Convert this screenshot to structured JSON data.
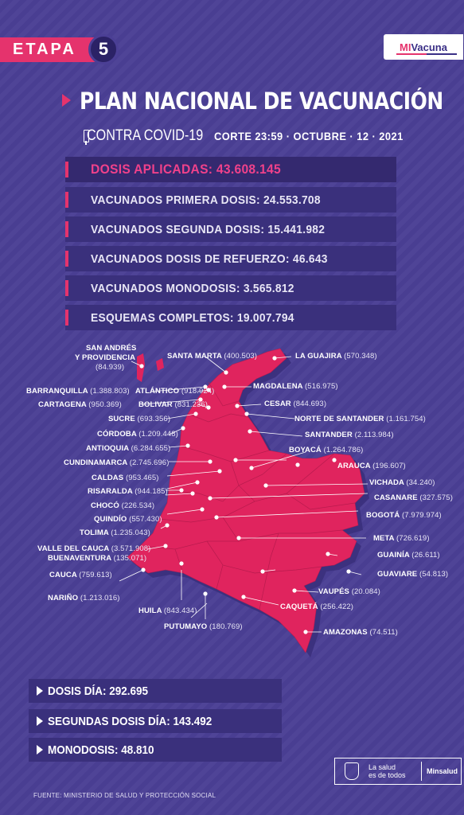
{
  "header": {
    "etapa_label": "ETAPA",
    "etapa_number": "5",
    "logo_mi": "MI",
    "logo_vacuna": "Vacuna",
    "title": "PLAN NACIONAL DE VACUNACIÓN",
    "subtitle": "CONTRA COVID-19",
    "corte": "CORTE 23:59 · OCTUBRE · 12 · 2021"
  },
  "stats": [
    "DOSIS APLICADAS: 43.608.145",
    "VACUNADOS PRIMERA DOSIS: 24.553.708",
    "VACUNADOS SEGUNDA DOSIS: 15.441.982",
    "VACUNADOS  DOSIS DE REFUERZO: 46.643",
    "VACUNADOS MONODOSIS: 3.565.812",
    "ESQUEMAS COMPLETOS: 19.007.794"
  ],
  "map_labels": [
    {
      "name": "SAN ANDRÉS",
      "value": ""
    },
    {
      "name": "Y PROVIDENCIA",
      "value": ""
    },
    {
      "name": "",
      "value": "(84.939)"
    },
    {
      "name": "SANTA MARTA",
      "value": "(400.503)"
    },
    {
      "name": "LA GUAJIRA",
      "value": "(570.348)"
    },
    {
      "name": "BARRANQUILLA",
      "value": "(1.388.803)"
    },
    {
      "name": "ATLÁNTICO",
      "value": "(918.924)"
    },
    {
      "name": "MAGDALENA",
      "value": "(516.975)"
    },
    {
      "name": "CARTAGENA",
      "value": "(950.369)"
    },
    {
      "name": "BOLIVAR",
      "value": "(831.236)"
    },
    {
      "name": "CESAR",
      "value": "(844.693)"
    },
    {
      "name": "SUCRE",
      "value": "(693.356)"
    },
    {
      "name": "NORTE DE SANTANDER",
      "value": "(1.161.754)"
    },
    {
      "name": "CÓRDOBA",
      "value": "(1.209.448)"
    },
    {
      "name": "SANTANDER",
      "value": "(2.113.984)"
    },
    {
      "name": "ANTIOQUIA",
      "value": "(6.284.655)"
    },
    {
      "name": "BOYACÁ",
      "value": "(1.264.786)"
    },
    {
      "name": "CUNDINAMARCA",
      "value": "(2.745.696)"
    },
    {
      "name": "ARAUCA",
      "value": "(196.607)"
    },
    {
      "name": "CALDAS",
      "value": "(953.465)"
    },
    {
      "name": "VICHADA",
      "value": "(34.240)"
    },
    {
      "name": "RISARALDA",
      "value": "(944.185)"
    },
    {
      "name": "CASANARE",
      "value": "(327.575)"
    },
    {
      "name": "CHOCÓ",
      "value": "(226.534)"
    },
    {
      "name": "BOGOTÁ",
      "value": "(7.979.974)"
    },
    {
      "name": "QUINDÍO",
      "value": "(557.430)"
    },
    {
      "name": "TOLIMA",
      "value": "(1.235.043)"
    },
    {
      "name": "META",
      "value": "(726.619)"
    },
    {
      "name": "VALLE DEL CAUCA",
      "value": "(3.571.908)"
    },
    {
      "name": "BUENAVENTURA",
      "value": "(135.071)"
    },
    {
      "name": "GUAINÍA",
      "value": "(26.611)"
    },
    {
      "name": "CAUCA",
      "value": "(759.613)"
    },
    {
      "name": "GUAVIARE",
      "value": "(54.813)"
    },
    {
      "name": "NARIÑO",
      "value": "(1.213.016)"
    },
    {
      "name": "VAUPÉS",
      "value": "(20.084)"
    },
    {
      "name": "CAQUETÁ",
      "value": "(256.422)"
    },
    {
      "name": "HUILA",
      "value": "(843.434)"
    },
    {
      "name": "AMAZONAS",
      "value": "(74.511)"
    },
    {
      "name": "PUTUMAYO",
      "value": "(180.769)"
    }
  ],
  "bottom_stats": [
    "DOSIS DÍA: 292.695",
    "SEGUNDAS DOSIS DÍA: 143.492",
    "MONODOSIS: 48.810"
  ],
  "footer": {
    "slogan_line1": "La salud",
    "slogan_line2": "es de todos",
    "ministry": "Minsalud",
    "source": "FUENTE: MINISTERIO DE SALUD Y PROTECCIÓN SOCIAL"
  },
  "colors": {
    "background": "#4b3f95",
    "accent": "#e5336d",
    "bar": "#3a307c",
    "map_fill": "#e0245e"
  }
}
